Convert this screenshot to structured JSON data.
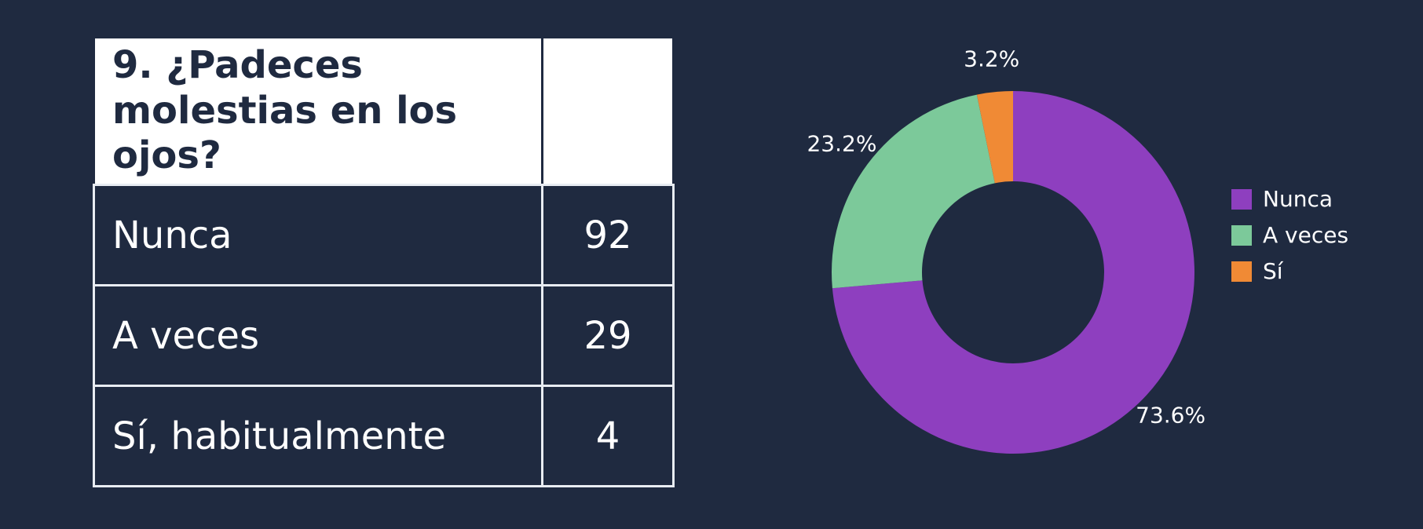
{
  "table": {
    "title": "9. ¿Padeces molestias en los ojos?",
    "rows": [
      [
        "Nunca",
        92
      ],
      [
        "A veces",
        29
      ],
      [
        "Sí, habitualmente",
        4
      ]
    ]
  },
  "chart_data": {
    "type": "pie",
    "donut": true,
    "categories": [
      "Nunca",
      "A veces",
      "Sí"
    ],
    "values": [
      73.6,
      23.2,
      3.2
    ],
    "value_labels": [
      "73.6%",
      "23.2%",
      "3.2%"
    ],
    "colors": [
      "#8e3fbf",
      "#7cc99a",
      "#f08a35"
    ],
    "legend": "right"
  }
}
